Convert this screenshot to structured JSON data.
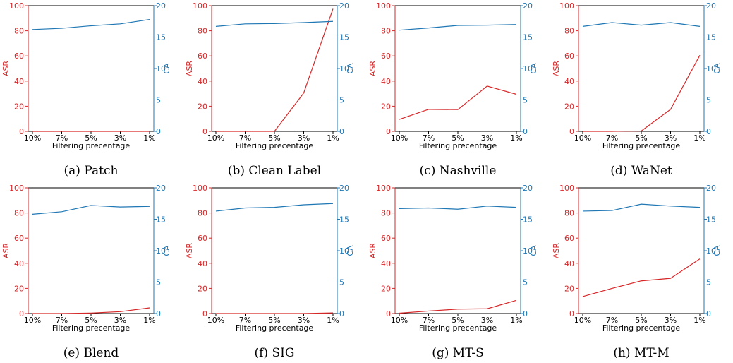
{
  "colors": {
    "asr": "#d62728",
    "ca": "#1f77b4",
    "axis": "#000000"
  },
  "chart_data": [
    {
      "type": "line",
      "caption": "(a) Patch",
      "categories": [
        "10%",
        "7%",
        "5%",
        "3%",
        "1%"
      ],
      "xlabel": "Filtering precentage",
      "ylabel_left": "ASR",
      "ylabel_right": "CA",
      "ylim_left": [
        0,
        100
      ],
      "ylim_right": [
        0,
        20
      ],
      "yticks_left": [
        "0",
        "20",
        "40",
        "60",
        "80",
        "100"
      ],
      "yticks_right": [
        "0",
        "5",
        "10",
        "15",
        "20"
      ],
      "series": [
        {
          "axis": "left",
          "values": [
            0,
            0,
            0,
            0,
            0
          ]
        },
        {
          "axis": "right",
          "values": [
            16.2,
            16.4,
            16.8,
            17.1,
            17.8
          ]
        }
      ]
    },
    {
      "type": "line",
      "caption": "(b) Clean Label",
      "categories": [
        "10%",
        "7%",
        "5%",
        "3%",
        "1%"
      ],
      "xlabel": "Filtering precentage",
      "ylabel_left": "ASR",
      "ylabel_right": "CA",
      "ylim_left": [
        0,
        100
      ],
      "ylim_right": [
        0,
        20
      ],
      "yticks_left": [
        "0",
        "20",
        "40",
        "60",
        "80",
        "100"
      ],
      "yticks_right": [
        "0",
        "5",
        "10",
        "15",
        "20"
      ],
      "series": [
        {
          "axis": "left",
          "values": [
            0,
            0,
            0,
            30.5,
            97.5
          ]
        },
        {
          "axis": "right",
          "values": [
            16.7,
            17.1,
            17.15,
            17.3,
            17.5
          ]
        }
      ]
    },
    {
      "type": "line",
      "caption": "(c) Nashville",
      "categories": [
        "10%",
        "7%",
        "5%",
        "3%",
        "1%"
      ],
      "xlabel": "Filtering precentage",
      "ylabel_left": "ASR",
      "ylabel_right": "CA",
      "ylim_left": [
        0,
        100
      ],
      "ylim_right": [
        0,
        20
      ],
      "yticks_left": [
        "0",
        "20",
        "40",
        "60",
        "80",
        "100"
      ],
      "yticks_right": [
        "0",
        "5",
        "10",
        "15",
        "20"
      ],
      "series": [
        {
          "axis": "left",
          "values": [
            9.5,
            17.5,
            17.3,
            36,
            29.5
          ]
        },
        {
          "axis": "right",
          "values": [
            16.1,
            16.45,
            16.85,
            16.9,
            17.0
          ]
        }
      ]
    },
    {
      "type": "line",
      "caption": "(d) WaNet",
      "categories": [
        "10%",
        "7%",
        "5%",
        "3%",
        "1%"
      ],
      "xlabel": "Filtering precentage",
      "ylabel_left": "ASR",
      "ylabel_right": "CA",
      "ylim_left": [
        0,
        100
      ],
      "ylim_right": [
        0,
        20
      ],
      "yticks_left": [
        "0",
        "20",
        "40",
        "60",
        "80",
        "100"
      ],
      "yticks_right": [
        "0",
        "5",
        "10",
        "15",
        "20"
      ],
      "series": [
        {
          "axis": "left",
          "values": [
            0,
            0,
            0.3,
            17.5,
            60.5
          ]
        },
        {
          "axis": "right",
          "values": [
            16.7,
            17.3,
            16.9,
            17.3,
            16.7
          ]
        }
      ]
    },
    {
      "type": "line",
      "caption": "(e) Blend",
      "categories": [
        "10%",
        "7%",
        "5%",
        "3%",
        "1%"
      ],
      "xlabel": "Filtering precentage",
      "ylabel_left": "ASR",
      "ylabel_right": "CA",
      "ylim_left": [
        0,
        100
      ],
      "ylim_right": [
        0,
        20
      ],
      "yticks_left": [
        "0",
        "20",
        "40",
        "60",
        "80",
        "100"
      ],
      "yticks_right": [
        "0",
        "5",
        "10",
        "15",
        "20"
      ],
      "series": [
        {
          "axis": "left",
          "values": [
            0,
            0,
            0.4,
            1.5,
            4.5
          ]
        },
        {
          "axis": "right",
          "values": [
            15.8,
            16.2,
            17.2,
            16.95,
            17.05
          ]
        }
      ]
    },
    {
      "type": "line",
      "caption": "(f) SIG",
      "categories": [
        "10%",
        "7%",
        "5%",
        "3%",
        "1%"
      ],
      "xlabel": "Filtering precentage",
      "ylabel_left": "ASR",
      "ylabel_right": "CA",
      "ylim_left": [
        0,
        100
      ],
      "ylim_right": [
        0,
        20
      ],
      "yticks_left": [
        "0",
        "20",
        "40",
        "60",
        "80",
        "100"
      ],
      "yticks_right": [
        "0",
        "5",
        "10",
        "15",
        "20"
      ],
      "series": [
        {
          "axis": "left",
          "values": [
            0,
            0,
            0,
            0,
            0.5
          ]
        },
        {
          "axis": "right",
          "values": [
            16.3,
            16.8,
            16.9,
            17.3,
            17.5
          ]
        }
      ]
    },
    {
      "type": "line",
      "caption": "(g) MT-S",
      "categories": [
        "10%",
        "7%",
        "5%",
        "3%",
        "1%"
      ],
      "xlabel": "Filtering precentage",
      "ylabel_left": "ASR",
      "ylabel_right": "CA",
      "ylim_left": [
        0,
        100
      ],
      "ylim_right": [
        0,
        20
      ],
      "yticks_left": [
        "0",
        "20",
        "40",
        "60",
        "80",
        "100"
      ],
      "yticks_right": [
        "0",
        "5",
        "10",
        "15",
        "20"
      ],
      "series": [
        {
          "axis": "left",
          "values": [
            0.3,
            2,
            3.5,
            3.8,
            10.5
          ]
        },
        {
          "axis": "right",
          "values": [
            16.7,
            16.8,
            16.6,
            17.1,
            16.9
          ]
        }
      ]
    },
    {
      "type": "line",
      "caption": "(h) MT-M",
      "categories": [
        "10%",
        "7%",
        "5%",
        "3%",
        "1%"
      ],
      "xlabel": "Filtering precentage",
      "ylabel_left": "ASR",
      "ylabel_right": "CA",
      "ylim_left": [
        0,
        100
      ],
      "ylim_right": [
        0,
        20
      ],
      "yticks_left": [
        "0",
        "20",
        "40",
        "60",
        "80",
        "100"
      ],
      "yticks_right": [
        "0",
        "5",
        "10",
        "15",
        "20"
      ],
      "series": [
        {
          "axis": "left",
          "values": [
            13.5,
            20,
            26,
            28,
            43.5
          ]
        },
        {
          "axis": "right",
          "values": [
            16.3,
            16.4,
            17.4,
            17.1,
            16.9
          ]
        }
      ]
    }
  ]
}
